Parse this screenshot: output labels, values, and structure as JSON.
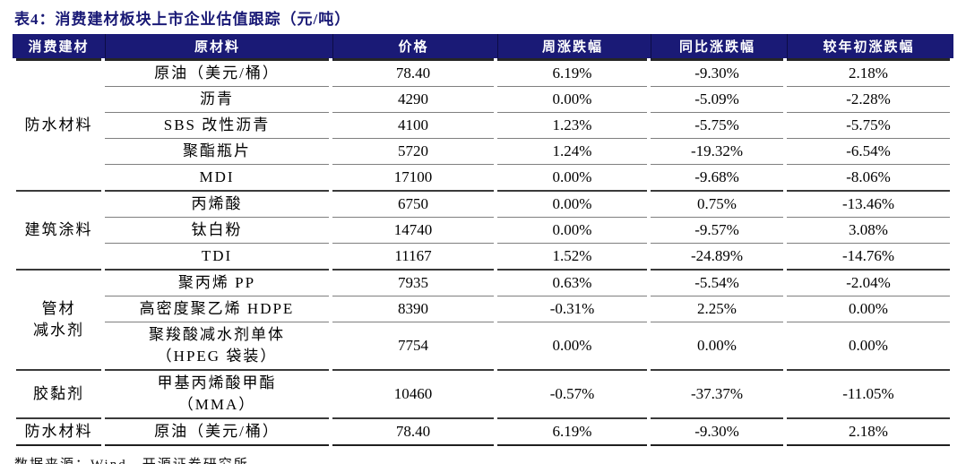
{
  "title": "表4：消费建材板块上市企业估值跟踪（元/吨）",
  "colors": {
    "header_bg": "#1a1a76",
    "title_text": "#1a1a76",
    "row_line": "#7f7f7f",
    "group_line": "#3a3a3a",
    "header_text": "#ffffff",
    "body_text": "#000000"
  },
  "table": {
    "columns": [
      "消费建材",
      "原材料",
      "价格",
      "周涨跌幅",
      "同比涨跌幅",
      "较年初涨跌幅"
    ],
    "groups": [
      {
        "category": "防水材料",
        "rows": [
          {
            "material": "原油（美元/桶）",
            "price": "78.40",
            "wow": "6.19%",
            "yoy": "-9.30%",
            "ytd": "2.18%"
          },
          {
            "material": "沥青",
            "price": "4290",
            "wow": "0.00%",
            "yoy": "-5.09%",
            "ytd": "-2.28%"
          },
          {
            "material": "SBS 改性沥青",
            "price": "4100",
            "wow": "1.23%",
            "yoy": "-5.75%",
            "ytd": "-5.75%"
          },
          {
            "material": "聚酯瓶片",
            "price": "5720",
            "wow": "1.24%",
            "yoy": "-19.32%",
            "ytd": "-6.54%"
          },
          {
            "material": "MDI",
            "price": "17100",
            "wow": "0.00%",
            "yoy": "-9.68%",
            "ytd": "-8.06%"
          }
        ]
      },
      {
        "category": "建筑涂料",
        "rows": [
          {
            "material": "丙烯酸",
            "price": "6750",
            "wow": "0.00%",
            "yoy": "0.75%",
            "ytd": "-13.46%"
          },
          {
            "material": "钛白粉",
            "price": "14740",
            "wow": "0.00%",
            "yoy": "-9.57%",
            "ytd": "3.08%"
          },
          {
            "material": "TDI",
            "price": "11167",
            "wow": "1.52%",
            "yoy": "-24.89%",
            "ytd": "-14.76%"
          }
        ]
      },
      {
        "category": "管材\n减水剂",
        "rows": [
          {
            "material": "聚丙烯 PP",
            "price": "7935",
            "wow": "0.63%",
            "yoy": "-5.54%",
            "ytd": "-2.04%"
          },
          {
            "material": "高密度聚乙烯 HDPE",
            "price": "8390",
            "wow": "-0.31%",
            "yoy": "2.25%",
            "ytd": "0.00%"
          },
          {
            "material": "聚羧酸减水剂单体\n（HPEG 袋装）",
            "price": "7754",
            "wow": "0.00%",
            "yoy": "0.00%",
            "ytd": "0.00%"
          }
        ]
      },
      {
        "category": "胶黏剂",
        "rows": [
          {
            "material": "甲基丙烯酸甲酯\n（MMA）",
            "price": "10460",
            "wow": "-0.57%",
            "yoy": "-37.37%",
            "ytd": "-11.05%"
          }
        ]
      },
      {
        "category": "防水材料",
        "rows": [
          {
            "material": "原油（美元/桶）",
            "price": "78.40",
            "wow": "6.19%",
            "yoy": "-9.30%",
            "ytd": "2.18%"
          }
        ]
      }
    ]
  },
  "footer": {
    "source": "数据来源：Wind、开源证券研究所"
  }
}
